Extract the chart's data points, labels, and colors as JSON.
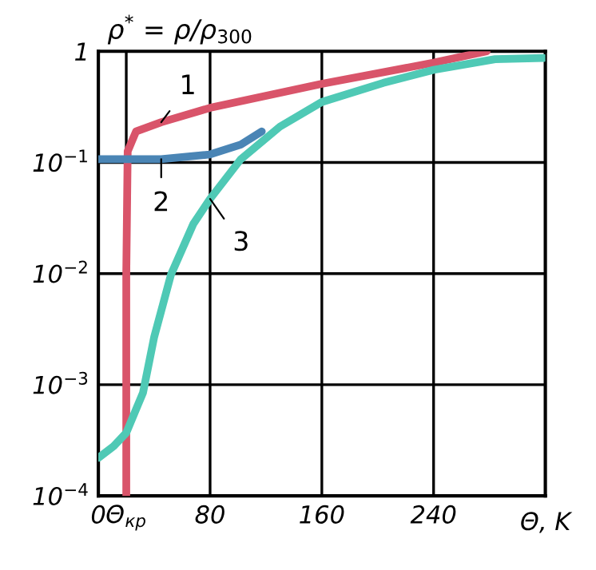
{
  "chart_data": {
    "type": "line",
    "ylabel": "ρ$^{*}$ = ρ/ρ$_{300}$",
    "xlabel": "Θ, K",
    "log": "y",
    "grid": true,
    "xlim": [
      0,
      320
    ],
    "ylim": [
      0.0001,
      1
    ],
    "xticks": [
      0,
      {
        "value": 20,
        "label": "Θ$_{кр}$"
      },
      80,
      160,
      240
    ],
    "yticks": [
      {
        "value": 0.0001,
        "label": "10$^{−4}$"
      },
      {
        "value": 0.001,
        "label": "10$^{−3}$"
      },
      {
        "value": 0.01,
        "label": "10$^{−2}$"
      },
      {
        "value": 0.1,
        "label": "10$^{−1}$"
      },
      1
    ],
    "series": [
      {
        "name": "1",
        "color": "#d9546a",
        "x": [
          20,
          20,
          20,
          21,
          27,
          45,
          80,
          160,
          240,
          278
        ],
        "values": [
          0.0001,
          0.001,
          0.01,
          0.126,
          0.19,
          0.23,
          0.31,
          0.51,
          0.79,
          1
        ]
      },
      {
        "name": "2",
        "color": "#4a85b5",
        "x": [
          0,
          45,
          80,
          102,
          117
        ],
        "values": [
          0.107,
          0.107,
          0.118,
          0.145,
          0.19
        ]
      },
      {
        "name": "3",
        "color": "#4fc9b5",
        "x": [
          0,
          11,
          20,
          32,
          40,
          52,
          68,
          80,
          102,
          130,
          160,
          204,
          240,
          284,
          319
        ],
        "values": [
          0.00022,
          0.00028,
          0.00037,
          0.00085,
          0.0027,
          0.0098,
          0.028,
          0.047,
          0.107,
          0.21,
          0.35,
          0.52,
          0.68,
          0.85,
          0.87
        ]
      }
    ]
  }
}
